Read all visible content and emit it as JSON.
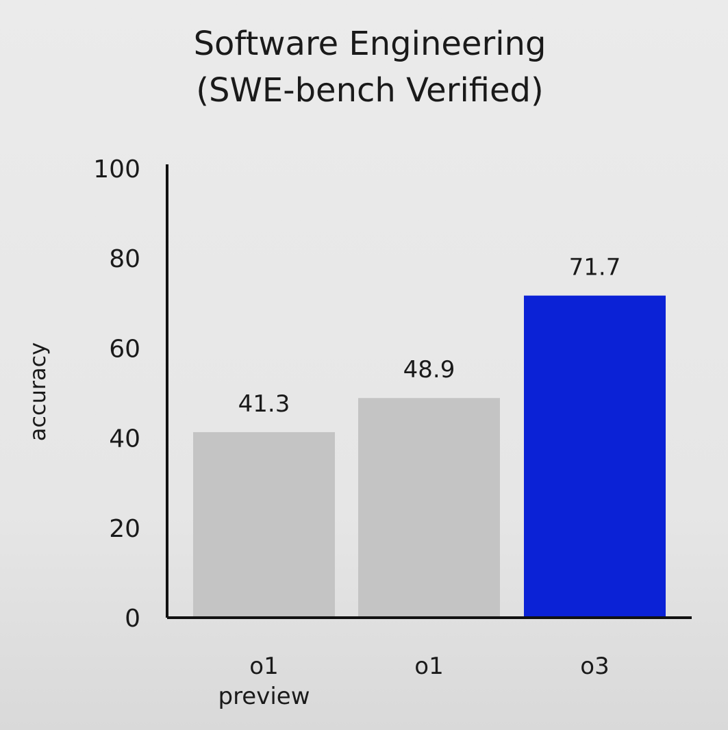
{
  "chart_data": {
    "type": "bar",
    "title_lines": [
      "Software Engineering",
      "(SWE-bench Verified)"
    ],
    "ylabel": "accuracy",
    "xlabel": "",
    "ylim": [
      0,
      100
    ],
    "yticks": [
      "0",
      "20",
      "40",
      "60",
      "80",
      "100"
    ],
    "categories": [
      [
        "o1",
        "preview"
      ],
      [
        "o1"
      ],
      [
        "o3"
      ]
    ],
    "values": [
      41.3,
      48.9,
      71.7
    ],
    "value_labels": [
      "41.3",
      "48.9",
      "71.7"
    ],
    "bar_colors": [
      "#c4c4c4",
      "#c4c4c4",
      "#0b22d6"
    ],
    "grid": false,
    "legend": "none"
  }
}
